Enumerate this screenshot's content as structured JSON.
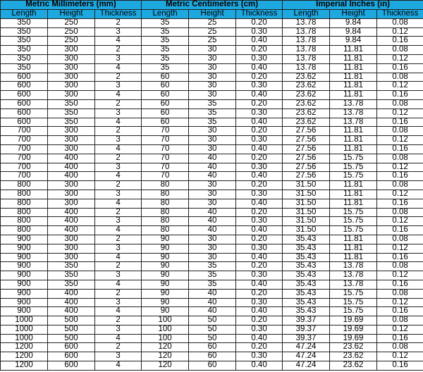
{
  "groups": [
    "Metric Millimeters (mm)",
    "Metric Centimeters (cm)",
    "Imperial Inches (in)"
  ],
  "columns": [
    "Length",
    "Height",
    "Thickness",
    "Length",
    "Height",
    "Thickness",
    "Length",
    "Height",
    "Thickness"
  ],
  "header_color": "#1ea8e0",
  "rows": [
    [
      "350",
      "250",
      "2",
      "35",
      "25",
      "0.20",
      "13.78",
      "9.84",
      "0.08"
    ],
    [
      "350",
      "250",
      "3",
      "35",
      "25",
      "0.30",
      "13.78",
      "9.84",
      "0.12"
    ],
    [
      "350",
      "250",
      "4",
      "35",
      "25",
      "0.40",
      "13.78",
      "9.84",
      "0.16"
    ],
    [
      "350",
      "300",
      "2",
      "35",
      "30",
      "0.20",
      "13.78",
      "11.81",
      "0.08"
    ],
    [
      "350",
      "300",
      "3",
      "35",
      "30",
      "0.30",
      "13.78",
      "11.81",
      "0.12"
    ],
    [
      "350",
      "300",
      "4",
      "35",
      "30",
      "0.40",
      "13.78",
      "11.81",
      "0.16"
    ],
    [
      "600",
      "300",
      "2",
      "60",
      "30",
      "0.20",
      "23.62",
      "11.81",
      "0.08"
    ],
    [
      "600",
      "300",
      "3",
      "60",
      "30",
      "0.30",
      "23.62",
      "11.81",
      "0.12"
    ],
    [
      "600",
      "300",
      "4",
      "60",
      "30",
      "0.40",
      "23.62",
      "11.81",
      "0.16"
    ],
    [
      "600",
      "350",
      "2",
      "60",
      "35",
      "0.20",
      "23.62",
      "13.78",
      "0.08"
    ],
    [
      "600",
      "350",
      "3",
      "60",
      "35",
      "0.30",
      "23.62",
      "13.78",
      "0.12"
    ],
    [
      "600",
      "350",
      "4",
      "60",
      "35",
      "0.40",
      "23.62",
      "13.78",
      "0.16"
    ],
    [
      "700",
      "300",
      "2",
      "70",
      "30",
      "0.20",
      "27.56",
      "11.81",
      "0.08"
    ],
    [
      "700",
      "300",
      "3",
      "70",
      "30",
      "0.30",
      "27.56",
      "11.81",
      "0.12"
    ],
    [
      "700",
      "300",
      "4",
      "70",
      "30",
      "0.40",
      "27.56",
      "11.81",
      "0.16"
    ],
    [
      "700",
      "400",
      "2",
      "70",
      "40",
      "0.20",
      "27.56",
      "15.75",
      "0.08"
    ],
    [
      "700",
      "400",
      "3",
      "70",
      "40",
      "0.30",
      "27.56",
      "15.75",
      "0.12"
    ],
    [
      "700",
      "400",
      "4",
      "70",
      "40",
      "0.40",
      "27.56",
      "15.75",
      "0.16"
    ],
    [
      "800",
      "300",
      "2",
      "80",
      "30",
      "0.20",
      "31.50",
      "11.81",
      "0.08"
    ],
    [
      "800",
      "300",
      "3",
      "80",
      "30",
      "0.30",
      "31.50",
      "11.81",
      "0.12"
    ],
    [
      "800",
      "300",
      "4",
      "80",
      "30",
      "0.40",
      "31.50",
      "11.81",
      "0.16"
    ],
    [
      "800",
      "400",
      "2",
      "80",
      "40",
      "0.20",
      "31.50",
      "15.75",
      "0.08"
    ],
    [
      "800",
      "400",
      "3",
      "80",
      "40",
      "0.30",
      "31.50",
      "15.75",
      "0.12"
    ],
    [
      "800",
      "400",
      "4",
      "80",
      "40",
      "0.40",
      "31.50",
      "15.75",
      "0.16"
    ],
    [
      "900",
      "300",
      "2",
      "90",
      "30",
      "0.20",
      "35.43",
      "11.81",
      "0.08"
    ],
    [
      "900",
      "300",
      "3",
      "90",
      "30",
      "0.30",
      "35.43",
      "11.81",
      "0.12"
    ],
    [
      "900",
      "300",
      "4",
      "90",
      "30",
      "0.40",
      "35.43",
      "11.81",
      "0.16"
    ],
    [
      "900",
      "350",
      "2",
      "90",
      "35",
      "0.20",
      "35.43",
      "13.78",
      "0.08"
    ],
    [
      "900",
      "350",
      "3",
      "90",
      "35",
      "0.30",
      "35.43",
      "13.78",
      "0.12"
    ],
    [
      "900",
      "350",
      "4",
      "90",
      "35",
      "0.40",
      "35.43",
      "13.78",
      "0.16"
    ],
    [
      "900",
      "400",
      "2",
      "90",
      "40",
      "0.20",
      "35.43",
      "15.75",
      "0.08"
    ],
    [
      "900",
      "400",
      "3",
      "90",
      "40",
      "0.30",
      "35.43",
      "15.75",
      "0.12"
    ],
    [
      "900",
      "400",
      "4",
      "90",
      "40",
      "0.40",
      "35.43",
      "15.75",
      "0.16"
    ],
    [
      "1000",
      "500",
      "2",
      "100",
      "50",
      "0.20",
      "39.37",
      "19.69",
      "0.08"
    ],
    [
      "1000",
      "500",
      "3",
      "100",
      "50",
      "0.30",
      "39.37",
      "19.69",
      "0.12"
    ],
    [
      "1000",
      "500",
      "4",
      "100",
      "50",
      "0.40",
      "39.37",
      "19.69",
      "0.16"
    ],
    [
      "1200",
      "600",
      "2",
      "120",
      "60",
      "0.20",
      "47.24",
      "23.62",
      "0.08"
    ],
    [
      "1200",
      "600",
      "3",
      "120",
      "60",
      "0.30",
      "47.24",
      "23.62",
      "0.12"
    ],
    [
      "1200",
      "600",
      "4",
      "120",
      "60",
      "0.40",
      "47.24",
      "23.62",
      "0.16"
    ]
  ]
}
